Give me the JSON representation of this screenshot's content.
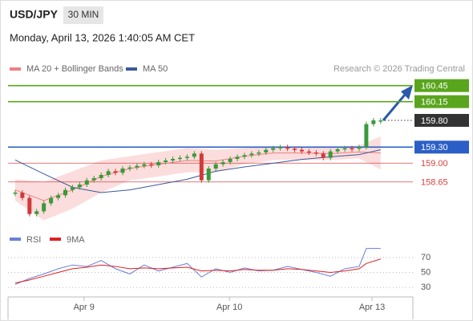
{
  "chart_data": {
    "type": "candlestick",
    "title": "USD/JPY",
    "timeframe": "30 MIN",
    "subtitle": "Monday, April 13, 2026 1:40:05 AM CET",
    "source": "Research © 2026 Trading Central",
    "up_color": "#3a9a3a",
    "down_color": "#d03a3a",
    "close": [
      158.45,
      158.35,
      158.05,
      158.1,
      158.25,
      158.35,
      158.4,
      158.5,
      158.55,
      158.6,
      158.68,
      158.72,
      158.78,
      158.85,
      158.82,
      158.9,
      158.92,
      158.95,
      158.98,
      158.96,
      159.02,
      159.05,
      159.08,
      159.1,
      159.12,
      159.18,
      158.68,
      158.9,
      158.98,
      159.02,
      159.08,
      159.12,
      159.15,
      159.18,
      159.2,
      159.25,
      159.28,
      159.3,
      159.27,
      159.25,
      159.22,
      159.2,
      159.18,
      159.1,
      159.22,
      159.26,
      159.28,
      159.27,
      159.3,
      159.73,
      159.8,
      159.8
    ],
    "xlim": [
      -1,
      55.5
    ],
    "xticks": [
      {
        "value": 9.6,
        "label": "Apr 9"
      },
      {
        "value": 29.9,
        "label": "Apr 10"
      },
      {
        "value": 49.8,
        "label": "Apr 13"
      }
    ],
    "ylim": [
      157.85,
      161.0
    ],
    "series": [
      {
        "name": "MA 20 + Bollinger Bands",
        "color": "#f08080",
        "band_color": "#fbd5d5",
        "x": [
          0,
          4,
          8,
          12,
          16,
          20,
          24,
          28,
          32,
          36,
          40,
          44,
          48,
          51
        ],
        "values": [
          158.5,
          158.3,
          158.5,
          158.75,
          158.9,
          158.98,
          159.05,
          159.04,
          159.13,
          159.19,
          159.19,
          159.18,
          159.21,
          159.19
        ],
        "upper": [
          158.7,
          158.65,
          158.85,
          159.05,
          159.13,
          159.21,
          159.28,
          159.25,
          159.28,
          159.31,
          159.31,
          159.3,
          159.33,
          159.5
        ],
        "lower": [
          158.3,
          157.93,
          158.15,
          158.45,
          158.68,
          158.75,
          158.83,
          158.83,
          158.98,
          159.06,
          159.06,
          159.06,
          159.09,
          158.88
        ]
      },
      {
        "name": "MA 50",
        "color": "#3a5a9a",
        "x": [
          0,
          4,
          8,
          12,
          16,
          20,
          24,
          28,
          32,
          36,
          40,
          44,
          48,
          51
        ],
        "values": [
          159.06,
          158.8,
          158.55,
          158.45,
          158.5,
          158.6,
          158.7,
          158.85,
          158.93,
          159.0,
          159.07,
          159.12,
          159.16,
          159.25
        ]
      }
    ],
    "levels": [
      {
        "value": 160.45,
        "label": "160.45",
        "color": "#5aa51e",
        "line": "solid",
        "style": "box"
      },
      {
        "value": 160.15,
        "label": "160.15",
        "color": "#5aa51e",
        "line": "solid",
        "style": "box"
      },
      {
        "value": 159.8,
        "label": "159.80",
        "color": "#333333",
        "line": "dotted",
        "style": "box"
      },
      {
        "value": 159.3,
        "label": "159.30",
        "color": "#2b5fc7",
        "line": "solid",
        "style": "box"
      },
      {
        "value": 159.0,
        "label": "159.00",
        "color": "#d84040",
        "line": "thin",
        "style": "text"
      },
      {
        "value": 158.65,
        "label": "158.65",
        "color": "#d84040",
        "line": "thin",
        "style": "text"
      }
    ],
    "rsi": {
      "ylim": [
        12,
        87
      ],
      "yticks": [
        70,
        50,
        30
      ],
      "series": [
        {
          "name": "RSI",
          "color": "#6a7fd8",
          "x": [
            0,
            2,
            4,
            6,
            8,
            10,
            12,
            14,
            16,
            18,
            20,
            22,
            24,
            26,
            28,
            30,
            32,
            34,
            36,
            38,
            40,
            42,
            44,
            46,
            48,
            49,
            51
          ],
          "values": [
            34,
            42,
            48,
            55,
            60,
            58,
            66,
            55,
            48,
            60,
            52,
            57,
            62,
            44,
            55,
            50,
            56,
            52,
            53,
            58,
            54,
            50,
            45,
            55,
            58,
            82,
            82
          ]
        },
        {
          "name": "9MA",
          "color": "#e02020",
          "x": [
            0,
            2,
            4,
            6,
            8,
            10,
            12,
            14,
            16,
            18,
            20,
            22,
            24,
            26,
            28,
            30,
            32,
            34,
            36,
            38,
            40,
            42,
            44,
            46,
            48,
            49,
            51
          ],
          "values": [
            36,
            40,
            45,
            50,
            55,
            57,
            60,
            58,
            55,
            56,
            55,
            56,
            57,
            52,
            53,
            52,
            54,
            53,
            53,
            55,
            54,
            52,
            50,
            52,
            55,
            62,
            68
          ]
        }
      ]
    }
  }
}
